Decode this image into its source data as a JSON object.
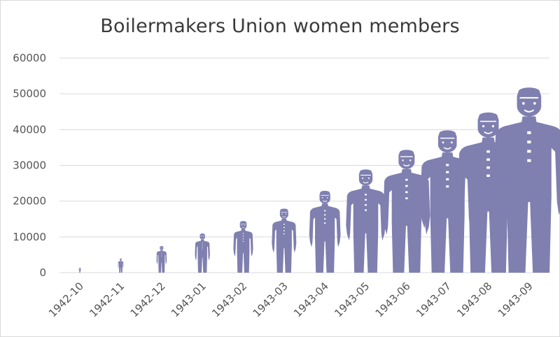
{
  "chart_data": {
    "type": "pictograph",
    "title": "Boilermakers Union women members",
    "categories": [
      "1942-10",
      "1942-11",
      "1942-12",
      "1943-01",
      "1943-02",
      "1943-03",
      "1943-04",
      "1943-05",
      "1943-06",
      "1943-07",
      "1943-08",
      "1943-09"
    ],
    "values": [
      1500,
      4000,
      7500,
      11000,
      14500,
      18000,
      23000,
      29000,
      34500,
      40000,
      45000,
      52000
    ],
    "yticks": [
      0,
      10000,
      20000,
      30000,
      40000,
      50000,
      60000
    ],
    "ylim": [
      0,
      60000
    ],
    "grid": true,
    "legend": "none",
    "colors": {
      "figure": "#7f7fb0",
      "face": "#ffffff",
      "grid": "#d9d9d9"
    }
  }
}
